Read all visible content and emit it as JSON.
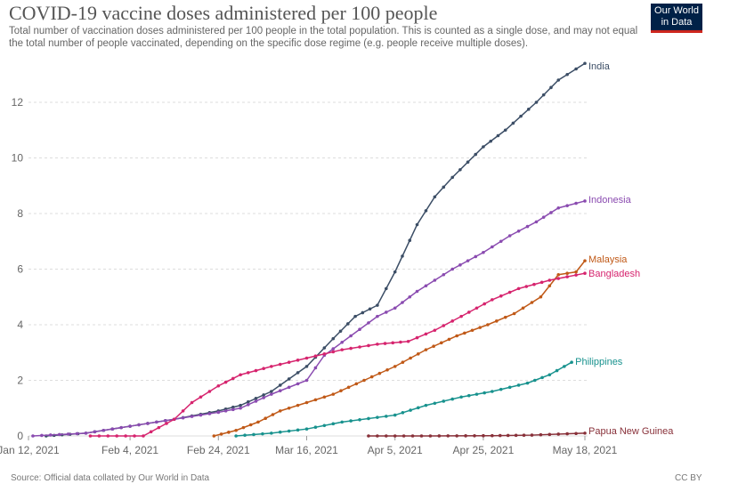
{
  "title": "COVID-19 vaccine doses administered per 100 people",
  "subtitle": "Total number of vaccination doses administered per 100 people in the total population. This is counted as a single dose, and may not equal the total number of people vaccinated, depending on the specific dose regime (e.g. people receive multiple doses).",
  "logo": "Our World in Data",
  "source": "Source: Official data collated by Our World in Data",
  "license": "CC BY",
  "chart_data": {
    "type": "line",
    "title": "COVID-19 vaccine doses administered per 100 people",
    "xlabel": "",
    "ylabel": "",
    "xlim": [
      "2021-01-12",
      "2021-05-18"
    ],
    "ylim": [
      0,
      13.5
    ],
    "x_ticks": [
      "2021-01-12",
      "2021-02-04",
      "2021-02-24",
      "2021-03-16",
      "2021-04-05",
      "2021-04-25",
      "2021-05-18"
    ],
    "x_tick_labels": [
      "Jan 12, 2021",
      "Feb 4, 2021",
      "Feb 24, 2021",
      "Mar 16, 2021",
      "Apr 5, 2021",
      "Apr 25, 2021",
      "May 18, 2021"
    ],
    "y_ticks": [
      0,
      2,
      4,
      6,
      8,
      10,
      12
    ],
    "grid": "horizontal dashed",
    "legend": "inline labels at line ends",
    "series": [
      {
        "name": "India",
        "color": "#3c4e66",
        "points": [
          [
            "2021-01-16",
            0
          ],
          [
            "2021-01-25",
            0.1
          ],
          [
            "2021-02-04",
            0.35
          ],
          [
            "2021-02-14",
            0.6
          ],
          [
            "2021-02-24",
            0.9
          ],
          [
            "2021-03-01",
            1.1
          ],
          [
            "2021-03-08",
            1.6
          ],
          [
            "2021-03-16",
            2.5
          ],
          [
            "2021-03-22",
            3.5
          ],
          [
            "2021-03-27",
            4.3
          ],
          [
            "2021-04-01",
            4.7
          ],
          [
            "2021-04-05",
            5.9
          ],
          [
            "2021-04-10",
            7.6
          ],
          [
            "2021-04-14",
            8.6
          ],
          [
            "2021-04-18",
            9.3
          ],
          [
            "2021-04-25",
            10.4
          ],
          [
            "2021-04-30",
            11.0
          ],
          [
            "2021-05-07",
            12.0
          ],
          [
            "2021-05-12",
            12.8
          ],
          [
            "2021-05-18",
            13.4
          ]
        ]
      },
      {
        "name": "Indonesia",
        "color": "#8a4bb0",
        "points": [
          [
            "2021-01-13",
            0
          ],
          [
            "2021-01-25",
            0.1
          ],
          [
            "2021-02-04",
            0.35
          ],
          [
            "2021-02-14",
            0.6
          ],
          [
            "2021-02-24",
            0.85
          ],
          [
            "2021-03-01",
            1.0
          ],
          [
            "2021-03-08",
            1.5
          ],
          [
            "2021-03-16",
            2.0
          ],
          [
            "2021-03-20",
            2.9
          ],
          [
            "2021-03-26",
            3.6
          ],
          [
            "2021-04-01",
            4.3
          ],
          [
            "2021-04-05",
            4.6
          ],
          [
            "2021-04-10",
            5.2
          ],
          [
            "2021-04-14",
            5.6
          ],
          [
            "2021-04-18",
            6.0
          ],
          [
            "2021-04-25",
            6.6
          ],
          [
            "2021-05-01",
            7.2
          ],
          [
            "2021-05-07",
            7.7
          ],
          [
            "2021-05-12",
            8.2
          ],
          [
            "2021-05-18",
            8.45
          ]
        ]
      },
      {
        "name": "Malaysia",
        "color": "#c05917",
        "points": [
          [
            "2021-02-23",
            0
          ],
          [
            "2021-02-28",
            0.2
          ],
          [
            "2021-03-05",
            0.5
          ],
          [
            "2021-03-10",
            0.9
          ],
          [
            "2021-03-16",
            1.2
          ],
          [
            "2021-03-22",
            1.5
          ],
          [
            "2021-03-29",
            2.0
          ],
          [
            "2021-04-05",
            2.5
          ],
          [
            "2021-04-12",
            3.1
          ],
          [
            "2021-04-19",
            3.6
          ],
          [
            "2021-04-26",
            4.0
          ],
          [
            "2021-05-02",
            4.4
          ],
          [
            "2021-05-08",
            5.0
          ],
          [
            "2021-05-12",
            5.8
          ],
          [
            "2021-05-16",
            5.9
          ],
          [
            "2021-05-18",
            6.3
          ]
        ]
      },
      {
        "name": "Bangladesh",
        "color": "#d6246e",
        "points": [
          [
            "2021-01-26",
            0
          ],
          [
            "2021-02-07",
            0
          ],
          [
            "2021-02-14",
            0.6
          ],
          [
            "2021-02-18",
            1.2
          ],
          [
            "2021-02-24",
            1.8
          ],
          [
            "2021-03-01",
            2.2
          ],
          [
            "2021-03-08",
            2.5
          ],
          [
            "2021-03-16",
            2.8
          ],
          [
            "2021-03-24",
            3.1
          ],
          [
            "2021-04-01",
            3.3
          ],
          [
            "2021-04-08",
            3.4
          ],
          [
            "2021-04-14",
            3.8
          ],
          [
            "2021-04-20",
            4.3
          ],
          [
            "2021-04-27",
            4.9
          ],
          [
            "2021-05-03",
            5.3
          ],
          [
            "2021-05-10",
            5.6
          ],
          [
            "2021-05-18",
            5.85
          ]
        ]
      },
      {
        "name": "Philippines",
        "color": "#18928e",
        "points": [
          [
            "2021-02-28",
            0
          ],
          [
            "2021-03-08",
            0.1
          ],
          [
            "2021-03-16",
            0.25
          ],
          [
            "2021-03-24",
            0.5
          ],
          [
            "2021-04-05",
            0.75
          ],
          [
            "2021-04-12",
            1.1
          ],
          [
            "2021-04-20",
            1.4
          ],
          [
            "2021-04-27",
            1.6
          ],
          [
            "2021-05-05",
            1.9
          ],
          [
            "2021-05-10",
            2.2
          ],
          [
            "2021-05-15",
            2.65
          ]
        ]
      },
      {
        "name": "Papua New Guinea",
        "color": "#883039",
        "points": [
          [
            "2021-03-30",
            0
          ],
          [
            "2021-04-13",
            0
          ],
          [
            "2021-04-27",
            0.01
          ],
          [
            "2021-05-06",
            0.03
          ],
          [
            "2021-05-18",
            0.1
          ]
        ]
      }
    ]
  }
}
